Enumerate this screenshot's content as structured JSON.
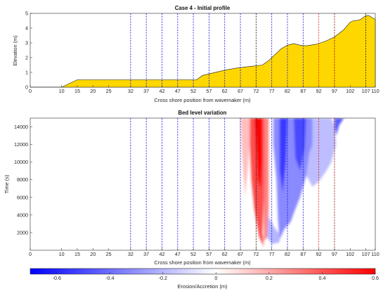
{
  "chart_data": [
    {
      "type": "area",
      "title": "Case 4 - Initial profile",
      "xlabel": "Cross shore position from wavemaker (m)",
      "ylabel": "Elevation (m)",
      "xlim": [
        0,
        110
      ],
      "ylim": [
        0,
        5
      ],
      "xticks": [
        0,
        10,
        15,
        20,
        25,
        32,
        37,
        42,
        47,
        52,
        57,
        62,
        67,
        72,
        77,
        82,
        87,
        92,
        97,
        102,
        107,
        110
      ],
      "yticks": [
        0,
        1,
        2,
        3,
        4,
        5
      ],
      "fill_color": "#ffd700",
      "profile": {
        "x": [
          0,
          10,
          15,
          53,
          55,
          58,
          62,
          66,
          70,
          74,
          76,
          78,
          80,
          82,
          84,
          86,
          88,
          91,
          94,
          97,
          100,
          102,
          103,
          105,
          107,
          108,
          109,
          110
        ],
        "y": [
          0,
          0,
          0.5,
          0.5,
          0.8,
          0.95,
          1.15,
          1.3,
          1.4,
          1.5,
          1.8,
          2.2,
          2.6,
          2.85,
          2.95,
          2.85,
          2.8,
          2.9,
          3.1,
          3.4,
          3.9,
          4.4,
          4.5,
          4.55,
          4.85,
          4.85,
          4.7,
          4.6
        ]
      },
      "gauges": [
        {
          "x": 32,
          "color": "#1a1ae6"
        },
        {
          "x": 37,
          "color": "#1a1ae6"
        },
        {
          "x": 42,
          "color": "#1a1ae6"
        },
        {
          "x": 47,
          "color": "#1a1ae6"
        },
        {
          "x": 52,
          "color": "#1a1ae6"
        },
        {
          "x": 57,
          "color": "#1a1ae6"
        },
        {
          "x": 62,
          "color": "#1a1ae6"
        },
        {
          "x": 67,
          "color": "#1a1ae6"
        },
        {
          "x": 72,
          "color": "#1a1a1a"
        },
        {
          "x": 77,
          "color": "#1a1ae6"
        },
        {
          "x": 82,
          "color": "#1a1ae6"
        },
        {
          "x": 87,
          "color": "#1a1ae6"
        },
        {
          "x": 92,
          "color": "#e62020"
        },
        {
          "x": 97,
          "color": "#8b0000"
        },
        {
          "x": 107,
          "color": "#1a1a1a"
        }
      ]
    },
    {
      "type": "heatmap",
      "title": "Bed level variation",
      "xlabel": "Cross shore position from wavemaker (m)",
      "ylabel": "Time (s)",
      "xlim": [
        0,
        110
      ],
      "ylim": [
        0,
        15000
      ],
      "xticks": [
        0,
        10,
        15,
        20,
        25,
        32,
        37,
        42,
        47,
        52,
        57,
        62,
        67,
        72,
        77,
        82,
        87,
        92,
        97,
        102,
        107,
        110
      ],
      "yticks": [
        2000,
        4000,
        6000,
        8000,
        10000,
        12000,
        14000
      ],
      "colorbar": {
        "label": "Erosion/Accretion (m)",
        "range": [
          -0.7,
          0.6
        ],
        "ticks": [
          -0.6,
          -0.4,
          -0.2,
          0,
          0.2,
          0.4,
          0.6
        ],
        "colors": [
          "#0000ff",
          "#ffffff",
          "#ff0000"
        ]
      },
      "gauges": [
        {
          "x": 32,
          "color": "#1a1ae6"
        },
        {
          "x": 37,
          "color": "#1a1ae6"
        },
        {
          "x": 42,
          "color": "#1a1ae6"
        },
        {
          "x": 47,
          "color": "#1a1ae6"
        },
        {
          "x": 52,
          "color": "#1a1ae6"
        },
        {
          "x": 57,
          "color": "#1a1ae6"
        },
        {
          "x": 62,
          "color": "#1a1ae6"
        },
        {
          "x": 67,
          "color": "#1a1ae6"
        },
        {
          "x": 72,
          "color": "#1a1a1a"
        },
        {
          "x": 77,
          "color": "#1a1ae6"
        },
        {
          "x": 82,
          "color": "#1a1ae6"
        },
        {
          "x": 87,
          "color": "#1a1ae6"
        },
        {
          "x": 92,
          "color": "#e62020"
        },
        {
          "x": 97,
          "color": "#8b0000"
        }
      ],
      "regions": [
        {
          "value": 0.15,
          "points": [
            [
              67,
              15000
            ],
            [
              70,
              15000
            ],
            [
              70,
              12000
            ],
            [
              69,
              8000
            ],
            [
              68.5,
              6000
            ],
            [
              67.5,
              11000
            ]
          ]
        },
        {
          "value": 0.42,
          "points": [
            [
              70,
              15000
            ],
            [
              74.5,
              15000
            ],
            [
              74.5,
              6000
            ],
            [
              74,
              2000
            ],
            [
              74.5,
              400
            ],
            [
              73,
              1500
            ],
            [
              71.5,
              4500
            ],
            [
              70.5,
              8000
            ],
            [
              70,
              12000
            ]
          ]
        },
        {
          "value": 0.6,
          "points": [
            [
              71.5,
              15000
            ],
            [
              74,
              15000
            ],
            [
              74,
              10000
            ],
            [
              73.5,
              7000
            ],
            [
              72.5,
              8000
            ],
            [
              72,
              12000
            ]
          ]
        },
        {
          "value": 0.3,
          "points": [
            [
              74.5,
              15000
            ],
            [
              76,
              15000
            ],
            [
              76,
              5000
            ],
            [
              75.5,
              1500
            ],
            [
              74.5,
              1000
            ],
            [
              74.5,
              6000
            ]
          ]
        },
        {
          "value": -0.32,
          "points": [
            [
              77.5,
              15000
            ],
            [
              90,
              15000
            ],
            [
              90,
              12000
            ],
            [
              89,
              11000
            ],
            [
              88,
              8500
            ],
            [
              86,
              6000
            ],
            [
              84,
              4200
            ],
            [
              83,
              3200
            ],
            [
              81,
              2400
            ],
            [
              79.5,
              1200
            ],
            [
              79,
              3500
            ],
            [
              78.5,
              8000
            ],
            [
              77.5,
              12000
            ]
          ]
        },
        {
          "value": -0.55,
          "points": [
            [
              79.5,
              15000
            ],
            [
              82,
              15000
            ],
            [
              81.5,
              10000
            ],
            [
              80.5,
              6500
            ],
            [
              79.5,
              9000
            ]
          ]
        },
        {
          "value": -0.5,
          "points": [
            [
              84,
              15000
            ],
            [
              88,
              15000
            ],
            [
              87.5,
              11500
            ],
            [
              86,
              9000
            ],
            [
              84.5,
              10500
            ]
          ]
        },
        {
          "value": -0.18,
          "points": [
            [
              90,
              15000
            ],
            [
              96,
              15000
            ],
            [
              97,
              14000
            ],
            [
              97.5,
              12000
            ],
            [
              96,
              10000
            ],
            [
              94,
              8800
            ],
            [
              92,
              7800
            ],
            [
              90,
              7200
            ],
            [
              88,
              8500
            ],
            [
              89,
              11000
            ],
            [
              90,
              12000
            ]
          ]
        },
        {
          "value": -0.45,
          "points": [
            [
              97,
              15000
            ],
            [
              100,
              15000
            ],
            [
              98.5,
              14200
            ],
            [
              97.5,
              13000
            ],
            [
              97,
              14000
            ]
          ]
        },
        {
          "value": -0.2,
          "points": [
            [
              75.5,
              1500
            ],
            [
              77,
              700
            ],
            [
              79.5,
              900
            ],
            [
              79.5,
              1800
            ],
            [
              78,
              2500
            ],
            [
              76,
              3800
            ],
            [
              76,
              5000
            ]
          ]
        }
      ]
    }
  ]
}
